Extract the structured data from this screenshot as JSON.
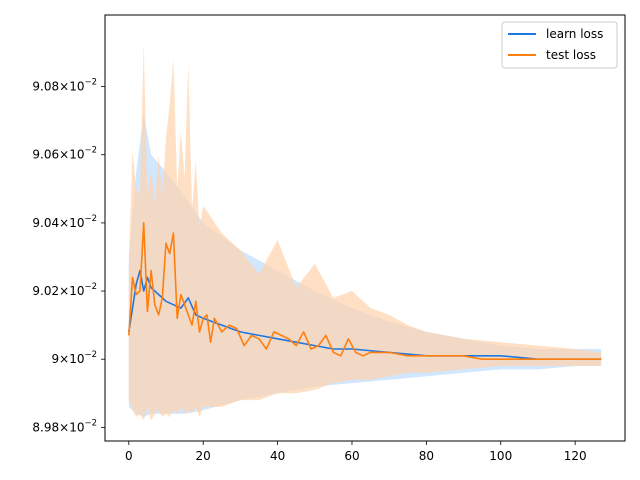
{
  "colors": {
    "learn": "#1f77e0",
    "learn_band": "#bfdcff",
    "test": "#ff7f0e",
    "test_band": "#ffd4ae",
    "overlap_band": "#d8cdc6",
    "axis": "#000000"
  },
  "chart_data": {
    "type": "line",
    "title": "",
    "xlabel": "",
    "ylabel": "",
    "xlim": [
      -6.4,
      133.4
    ],
    "ylim": [
      0.08976,
      0.09101
    ],
    "x_ticks": [
      0,
      20,
      40,
      60,
      80,
      100,
      120
    ],
    "y_ticks": [
      0.0898,
      0.09,
      0.0902,
      0.0904,
      0.0906,
      0.0908
    ],
    "y_tick_labels": [
      {
        "mantissa": "8.98",
        "base": "10",
        "exp": "−2"
      },
      {
        "mantissa": "9",
        "base": "10",
        "exp": "−2"
      },
      {
        "mantissa": "9.02",
        "base": "10",
        "exp": "−2"
      },
      {
        "mantissa": "9.04",
        "base": "10",
        "exp": "−2"
      },
      {
        "mantissa": "9.06",
        "base": "10",
        "exp": "−2"
      },
      {
        "mantissa": "9.08",
        "base": "10",
        "exp": "−2"
      }
    ],
    "grid": false,
    "legend_position": "upper-right",
    "series": [
      {
        "name": "learn loss",
        "key": "learn",
        "points": [
          [
            0,
            0.09008
          ],
          [
            1,
            0.09015
          ],
          [
            2,
            0.09022
          ],
          [
            3,
            0.09026
          ],
          [
            4,
            0.0902
          ],
          [
            5,
            0.09024
          ],
          [
            6,
            0.09021
          ],
          [
            8,
            0.09019
          ],
          [
            10,
            0.09017
          ],
          [
            12,
            0.09016
          ],
          [
            14,
            0.09015
          ],
          [
            16,
            0.09018
          ],
          [
            18,
            0.09013
          ],
          [
            20,
            0.09012
          ],
          [
            25,
            0.0901
          ],
          [
            30,
            0.09008
          ],
          [
            35,
            0.09007
          ],
          [
            40,
            0.09006
          ],
          [
            45,
            0.09005
          ],
          [
            50,
            0.09004
          ],
          [
            55,
            0.09003
          ],
          [
            60,
            0.09003
          ],
          [
            70,
            0.09002
          ],
          [
            80,
            0.09001
          ],
          [
            90,
            0.09001
          ],
          [
            100,
            0.09001
          ],
          [
            110,
            0.09
          ],
          [
            120,
            0.09
          ],
          [
            127,
            0.09
          ]
        ],
        "band": [
          [
            0,
            0.08986,
            0.0903
          ],
          [
            2,
            0.08984,
            0.09055
          ],
          [
            4,
            0.08983,
            0.09072
          ],
          [
            6,
            0.08984,
            0.0906
          ],
          [
            10,
            0.08984,
            0.09055
          ],
          [
            15,
            0.08984,
            0.09048
          ],
          [
            20,
            0.08985,
            0.0904
          ],
          [
            30,
            0.08988,
            0.09032
          ],
          [
            40,
            0.0899,
            0.09026
          ],
          [
            50,
            0.08992,
            0.0902
          ],
          [
            60,
            0.08993,
            0.09015
          ],
          [
            70,
            0.08994,
            0.09011
          ],
          [
            80,
            0.08995,
            0.09008
          ],
          [
            90,
            0.08996,
            0.09006
          ],
          [
            100,
            0.08997,
            0.09004
          ],
          [
            110,
            0.08997,
            0.09003
          ],
          [
            120,
            0.08998,
            0.09003
          ],
          [
            127,
            0.08998,
            0.09003
          ]
        ]
      },
      {
        "name": "test loss",
        "key": "test",
        "points": [
          [
            0,
            0.09007
          ],
          [
            1,
            0.09024
          ],
          [
            2,
            0.09019
          ],
          [
            3,
            0.0902
          ],
          [
            4,
            0.0904
          ],
          [
            5,
            0.09014
          ],
          [
            6,
            0.09026
          ],
          [
            7,
            0.09016
          ],
          [
            8,
            0.09013
          ],
          [
            9,
            0.09018
          ],
          [
            10,
            0.09034
          ],
          [
            11,
            0.09031
          ],
          [
            12,
            0.09037
          ],
          [
            13,
            0.09012
          ],
          [
            14,
            0.09019
          ],
          [
            15,
            0.09016
          ],
          [
            16,
            0.09013
          ],
          [
            17,
            0.0901
          ],
          [
            18,
            0.09017
          ],
          [
            19,
            0.09008
          ],
          [
            20,
            0.09012
          ],
          [
            21,
            0.09013
          ],
          [
            22,
            0.09005
          ],
          [
            23,
            0.09012
          ],
          [
            25,
            0.09008
          ],
          [
            27,
            0.0901
          ],
          [
            29,
            0.09009
          ],
          [
            31,
            0.09004
          ],
          [
            33,
            0.09007
          ],
          [
            35,
            0.09006
          ],
          [
            37,
            0.09003
          ],
          [
            39,
            0.09008
          ],
          [
            41,
            0.09007
          ],
          [
            43,
            0.09006
          ],
          [
            45,
            0.09004
          ],
          [
            47,
            0.09008
          ],
          [
            49,
            0.09003
          ],
          [
            51,
            0.09004
          ],
          [
            53,
            0.09007
          ],
          [
            55,
            0.09002
          ],
          [
            57,
            0.09001
          ],
          [
            59,
            0.09006
          ],
          [
            61,
            0.09002
          ],
          [
            63,
            0.09001
          ],
          [
            65,
            0.09002
          ],
          [
            70,
            0.09002
          ],
          [
            75,
            0.09001
          ],
          [
            80,
            0.09001
          ],
          [
            85,
            0.09001
          ],
          [
            90,
            0.09001
          ],
          [
            95,
            0.09
          ],
          [
            100,
            0.09
          ],
          [
            105,
            0.09
          ],
          [
            110,
            0.09
          ],
          [
            115,
            0.09
          ],
          [
            120,
            0.09
          ],
          [
            127,
            0.09
          ]
        ],
        "band": [
          [
            0,
            0.08988,
            0.09028
          ],
          [
            1,
            0.08985,
            0.09061
          ],
          [
            2,
            0.08983,
            0.0905
          ],
          [
            3,
            0.08984,
            0.09048
          ],
          [
            4,
            0.08982,
            0.09093
          ],
          [
            5,
            0.08986,
            0.09048
          ],
          [
            6,
            0.08982,
            0.09055
          ],
          [
            7,
            0.08984,
            0.09046
          ],
          [
            8,
            0.08985,
            0.0906
          ],
          [
            9,
            0.08983,
            0.09048
          ],
          [
            10,
            0.08984,
            0.09065
          ],
          [
            11,
            0.08983,
            0.09075
          ],
          [
            12,
            0.08985,
            0.09088
          ],
          [
            13,
            0.08984,
            0.0905
          ],
          [
            14,
            0.08986,
            0.09067
          ],
          [
            15,
            0.08984,
            0.09053
          ],
          [
            16,
            0.08985,
            0.09087
          ],
          [
            17,
            0.08984,
            0.09044
          ],
          [
            18,
            0.08986,
            0.09058
          ],
          [
            19,
            0.08983,
            0.09038
          ],
          [
            20,
            0.08986,
            0.09045
          ],
          [
            25,
            0.08986,
            0.09037
          ],
          [
            30,
            0.08988,
            0.09032
          ],
          [
            35,
            0.08988,
            0.09025
          ],
          [
            40,
            0.0899,
            0.09035
          ],
          [
            45,
            0.0899,
            0.09021
          ],
          [
            50,
            0.08991,
            0.09028
          ],
          [
            55,
            0.08993,
            0.09018
          ],
          [
            60,
            0.08994,
            0.0902
          ],
          [
            65,
            0.08994,
            0.09015
          ],
          [
            70,
            0.08995,
            0.09013
          ],
          [
            75,
            0.08996,
            0.0901
          ],
          [
            80,
            0.08996,
            0.09008
          ],
          [
            90,
            0.08997,
            0.09006
          ],
          [
            100,
            0.08998,
            0.09005
          ],
          [
            110,
            0.08998,
            0.09004
          ],
          [
            120,
            0.08998,
            0.09003
          ],
          [
            127,
            0.08998,
            0.09002
          ]
        ]
      }
    ]
  }
}
